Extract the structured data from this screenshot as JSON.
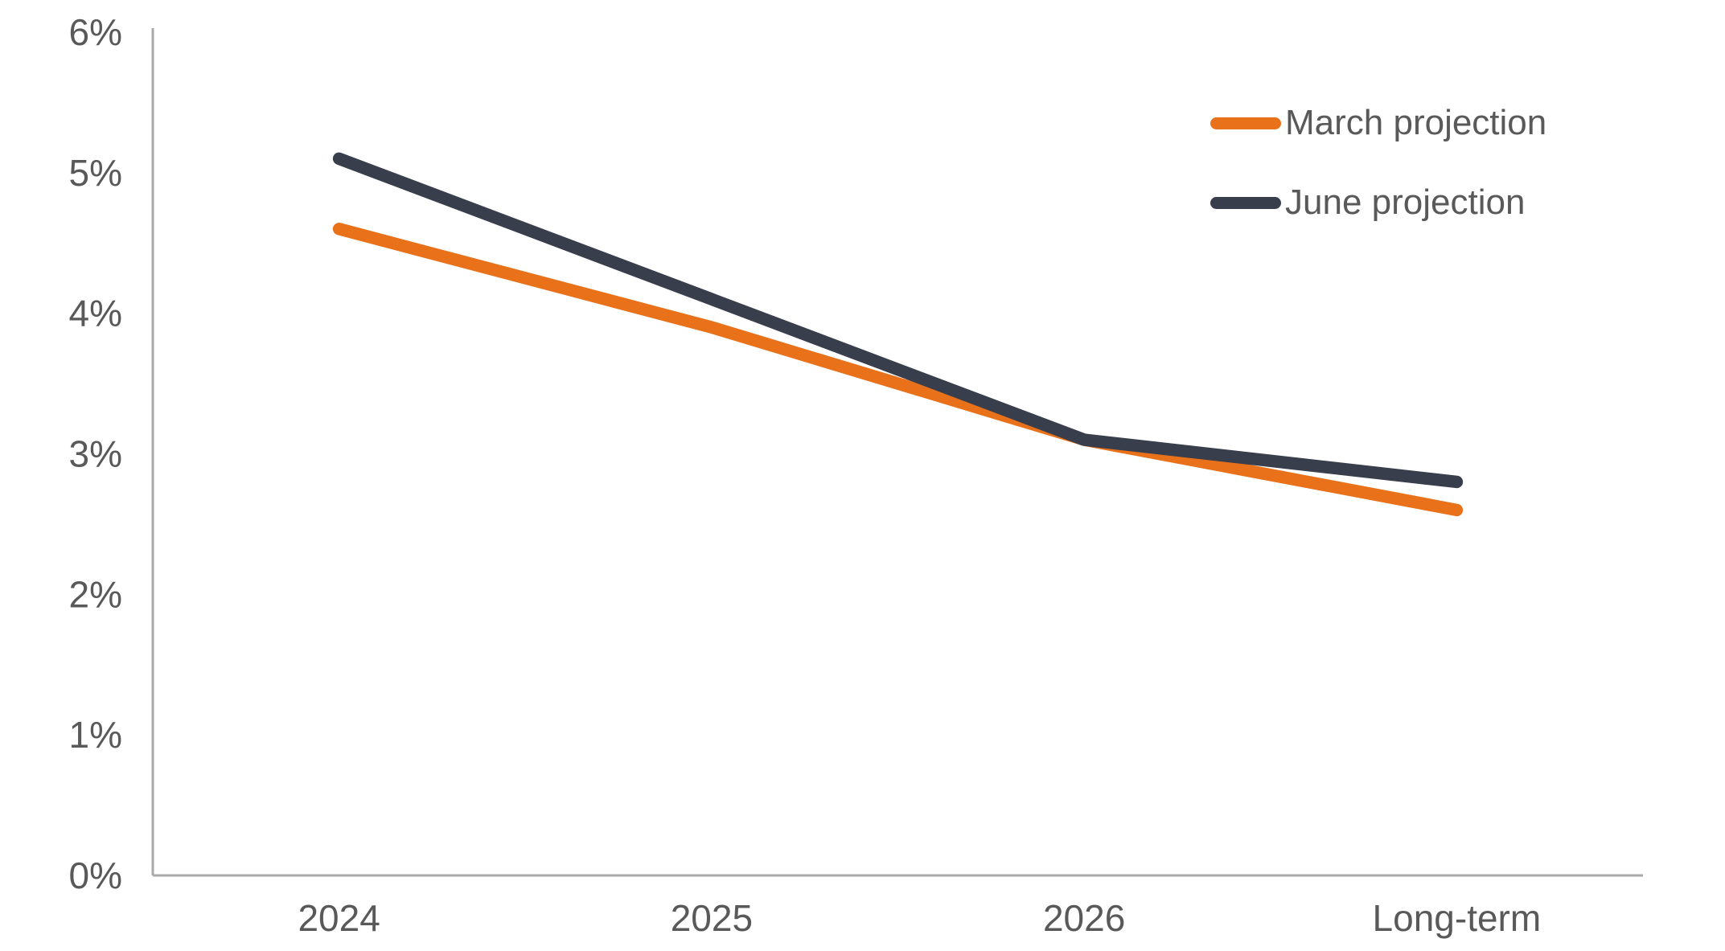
{
  "chart_data": {
    "type": "line",
    "title": "",
    "xlabel": "",
    "ylabel": "",
    "categories": [
      "2024",
      "2025",
      "2026",
      "Long-term"
    ],
    "series": [
      {
        "name": "March projection",
        "color": "#E8711A",
        "values": [
          4.6,
          3.9,
          3.1,
          2.6
        ]
      },
      {
        "name": "June projection",
        "color": "#393E4D",
        "values": [
          5.1,
          4.1,
          3.1,
          2.8
        ]
      }
    ],
    "ylim": [
      0,
      6
    ],
    "y_tick_values": [
      0,
      1,
      2,
      3,
      4,
      5,
      6
    ],
    "y_tick_labels": [
      "0%",
      "1%",
      "2%",
      "3%",
      "4%",
      "5%",
      "6%"
    ],
    "grid": false,
    "legend_position": "top-right",
    "axis_color": "#A9A9A9",
    "text_color": "#595959"
  }
}
